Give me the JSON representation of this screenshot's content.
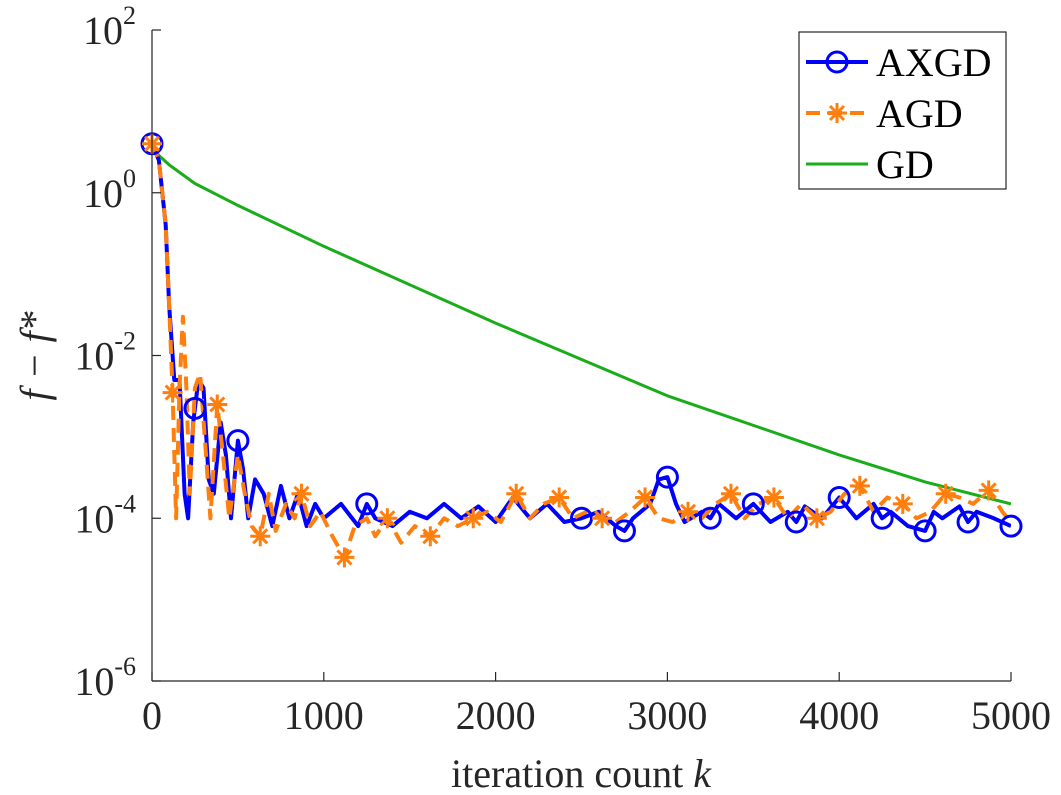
{
  "chart_data": {
    "type": "line",
    "yscale": "log",
    "xlabel_text": "iteration count ",
    "xlabel_var": "k",
    "ylabel": "f − f*",
    "xlim": [
      0,
      5000
    ],
    "ylim": [
      1e-06,
      100
    ],
    "xticks": [
      {
        "value": 0,
        "label": "0"
      },
      {
        "value": 1000,
        "label": "1000"
      },
      {
        "value": 2000,
        "label": "2000"
      },
      {
        "value": 3000,
        "label": "3000"
      },
      {
        "value": 4000,
        "label": "4000"
      },
      {
        "value": 5000,
        "label": "5000"
      }
    ],
    "yticks": [
      {
        "exp": -6,
        "base": "10",
        "label": "-6"
      },
      {
        "exp": -4,
        "base": "10",
        "label": "-4"
      },
      {
        "exp": -2,
        "base": "10",
        "label": "-2"
      },
      {
        "exp": 0,
        "base": "10",
        "label": "0"
      },
      {
        "exp": 2,
        "base": "10",
        "label": "2"
      }
    ],
    "legend_position": "top-right",
    "series": [
      {
        "name": "AXGD",
        "color": "#0000ff",
        "style": "solid",
        "marker": "circle",
        "marker_x": [
          0,
          250,
          500,
          1250,
          2500,
          2750,
          3000,
          3250,
          3500,
          3750,
          4000,
          4250,
          4500,
          4750,
          5000
        ],
        "points": [
          [
            0,
            4
          ],
          [
            40,
            2.5
          ],
          [
            80,
            0.4
          ],
          [
            100,
            0.04
          ],
          [
            130,
            0.005
          ],
          [
            160,
            0.005
          ],
          [
            190,
            0.0002
          ],
          [
            210,
            0.0001
          ],
          [
            240,
            0.0015
          ],
          [
            270,
            0.005
          ],
          [
            300,
            0.004
          ],
          [
            330,
            0.0003
          ],
          [
            360,
            0.0002
          ],
          [
            400,
            0.0015
          ],
          [
            430,
            0.0006
          ],
          [
            460,
            0.0001
          ],
          [
            500,
            0.0009
          ],
          [
            530,
            0.0004
          ],
          [
            560,
            0.0001
          ],
          [
            600,
            0.0003
          ],
          [
            650,
            0.0002
          ],
          [
            700,
            8e-05
          ],
          [
            750,
            0.00025
          ],
          [
            800,
            0.0001
          ],
          [
            850,
            0.0002
          ],
          [
            900,
            8e-05
          ],
          [
            950,
            0.00015
          ],
          [
            1000,
            0.0001
          ],
          [
            1100,
            0.00015
          ],
          [
            1200,
            8e-05
          ],
          [
            1250,
            0.00015
          ],
          [
            1300,
            0.0001
          ],
          [
            1400,
            8e-05
          ],
          [
            1500,
            0.00012
          ],
          [
            1600,
            0.0001
          ],
          [
            1700,
            0.00015
          ],
          [
            1800,
            0.0001
          ],
          [
            1900,
            0.00014
          ],
          [
            2000,
            9e-05
          ],
          [
            2100,
            0.00018
          ],
          [
            2200,
            0.0001
          ],
          [
            2300,
            0.00015
          ],
          [
            2400,
            9e-05
          ],
          [
            2500,
            0.0001
          ],
          [
            2600,
            0.00012
          ],
          [
            2700,
            8e-05
          ],
          [
            2750,
            7e-05
          ],
          [
            2800,
            0.0001
          ],
          [
            2900,
            0.00015
          ],
          [
            2950,
            0.0003
          ],
          [
            3000,
            0.00032
          ],
          [
            3050,
            0.00015
          ],
          [
            3100,
            9e-05
          ],
          [
            3200,
            0.00012
          ],
          [
            3250,
            0.0001
          ],
          [
            3300,
            0.00015
          ],
          [
            3400,
            0.0001
          ],
          [
            3500,
            0.00015
          ],
          [
            3600,
            9e-05
          ],
          [
            3700,
            0.00012
          ],
          [
            3750,
            9e-05
          ],
          [
            3800,
            0.00014
          ],
          [
            3900,
            0.0001
          ],
          [
            4000,
            0.00018
          ],
          [
            4100,
            0.0001
          ],
          [
            4200,
            0.00015
          ],
          [
            4250,
            0.0001
          ],
          [
            4300,
            0.00012
          ],
          [
            4400,
            8e-05
          ],
          [
            4500,
            7e-05
          ],
          [
            4550,
            0.00012
          ],
          [
            4600,
            0.0001
          ],
          [
            4700,
            0.00014
          ],
          [
            4750,
            9e-05
          ],
          [
            4800,
            0.00012
          ],
          [
            4900,
            0.0001
          ],
          [
            5000,
            8e-05
          ]
        ]
      },
      {
        "name": "AGD",
        "color": "#ff7f0e",
        "style": "dashed",
        "marker": "asterisk",
        "marker_x": [
          0,
          120,
          380,
          630,
          870,
          1120,
          1370,
          1620,
          1870,
          2120,
          2370,
          2620,
          2870,
          3120,
          3370,
          3620,
          3870,
          4120,
          4370,
          4620,
          4870
        ],
        "points": [
          [
            0,
            4
          ],
          [
            40,
            2.5
          ],
          [
            80,
            0.4
          ],
          [
            100,
            0.04
          ],
          [
            120,
            0.0035
          ],
          [
            140,
            0.0001
          ],
          [
            160,
            0.004
          ],
          [
            180,
            0.03
          ],
          [
            200,
            0.004
          ],
          [
            220,
            0.0002
          ],
          [
            250,
            0.004
          ],
          [
            280,
            0.006
          ],
          [
            310,
            0.0008
          ],
          [
            340,
            0.0001
          ],
          [
            380,
            0.0025
          ],
          [
            410,
            0.0007
          ],
          [
            450,
            0.0001
          ],
          [
            500,
            0.0006
          ],
          [
            540,
            0.0002
          ],
          [
            580,
            8e-05
          ],
          [
            630,
            6e-05
          ],
          [
            680,
            0.0002
          ],
          [
            720,
            7e-05
          ],
          [
            780,
            0.00015
          ],
          [
            830,
            0.0001
          ],
          [
            870,
            0.0002
          ],
          [
            920,
            8e-05
          ],
          [
            980,
            0.00012
          ],
          [
            1050,
            6e-05
          ],
          [
            1120,
            3.3e-05
          ],
          [
            1180,
            8e-05
          ],
          [
            1250,
            0.0001
          ],
          [
            1300,
            6e-05
          ],
          [
            1370,
            0.0001
          ],
          [
            1450,
            5e-05
          ],
          [
            1530,
            8e-05
          ],
          [
            1620,
            6e-05
          ],
          [
            1700,
            0.0001
          ],
          [
            1780,
            8e-05
          ],
          [
            1870,
            0.0001
          ],
          [
            1950,
            0.00012
          ],
          [
            2030,
            9e-05
          ],
          [
            2120,
            0.0002
          ],
          [
            2200,
            0.0001
          ],
          [
            2280,
            0.00015
          ],
          [
            2370,
            0.00018
          ],
          [
            2450,
            0.0001
          ],
          [
            2530,
            0.00012
          ],
          [
            2620,
            0.0001
          ],
          [
            2700,
            9e-05
          ],
          [
            2780,
            0.00012
          ],
          [
            2870,
            0.00018
          ],
          [
            2950,
            0.0001
          ],
          [
            3030,
            9e-05
          ],
          [
            3120,
            0.00012
          ],
          [
            3200,
            0.0001
          ],
          [
            3280,
            0.00015
          ],
          [
            3370,
            0.0002
          ],
          [
            3450,
            0.0001
          ],
          [
            3530,
            0.00015
          ],
          [
            3620,
            0.00018
          ],
          [
            3700,
            0.0001
          ],
          [
            3780,
            0.00015
          ],
          [
            3870,
            0.0001
          ],
          [
            3950,
            0.00012
          ],
          [
            4030,
            0.0002
          ],
          [
            4120,
            0.00025
          ],
          [
            4200,
            0.00012
          ],
          [
            4280,
            0.00018
          ],
          [
            4370,
            0.00015
          ],
          [
            4450,
            0.0001
          ],
          [
            4530,
            0.00012
          ],
          [
            4620,
            0.0002
          ],
          [
            4700,
            0.00018
          ],
          [
            4780,
            0.00015
          ],
          [
            4870,
            0.00022
          ],
          [
            4950,
            0.00012
          ],
          [
            5000,
            9e-05
          ]
        ]
      },
      {
        "name": "GD",
        "color": "#1aad1a",
        "style": "solid",
        "marker": "none",
        "points": [
          [
            0,
            4
          ],
          [
            30,
            3
          ],
          [
            100,
            2.2
          ],
          [
            250,
            1.3
          ],
          [
            500,
            0.7
          ],
          [
            1000,
            0.22
          ],
          [
            2000,
            0.025
          ],
          [
            3000,
            0.0032
          ],
          [
            4000,
            0.0006
          ],
          [
            4500,
            0.00028
          ],
          [
            5000,
            0.00015
          ]
        ]
      }
    ]
  }
}
